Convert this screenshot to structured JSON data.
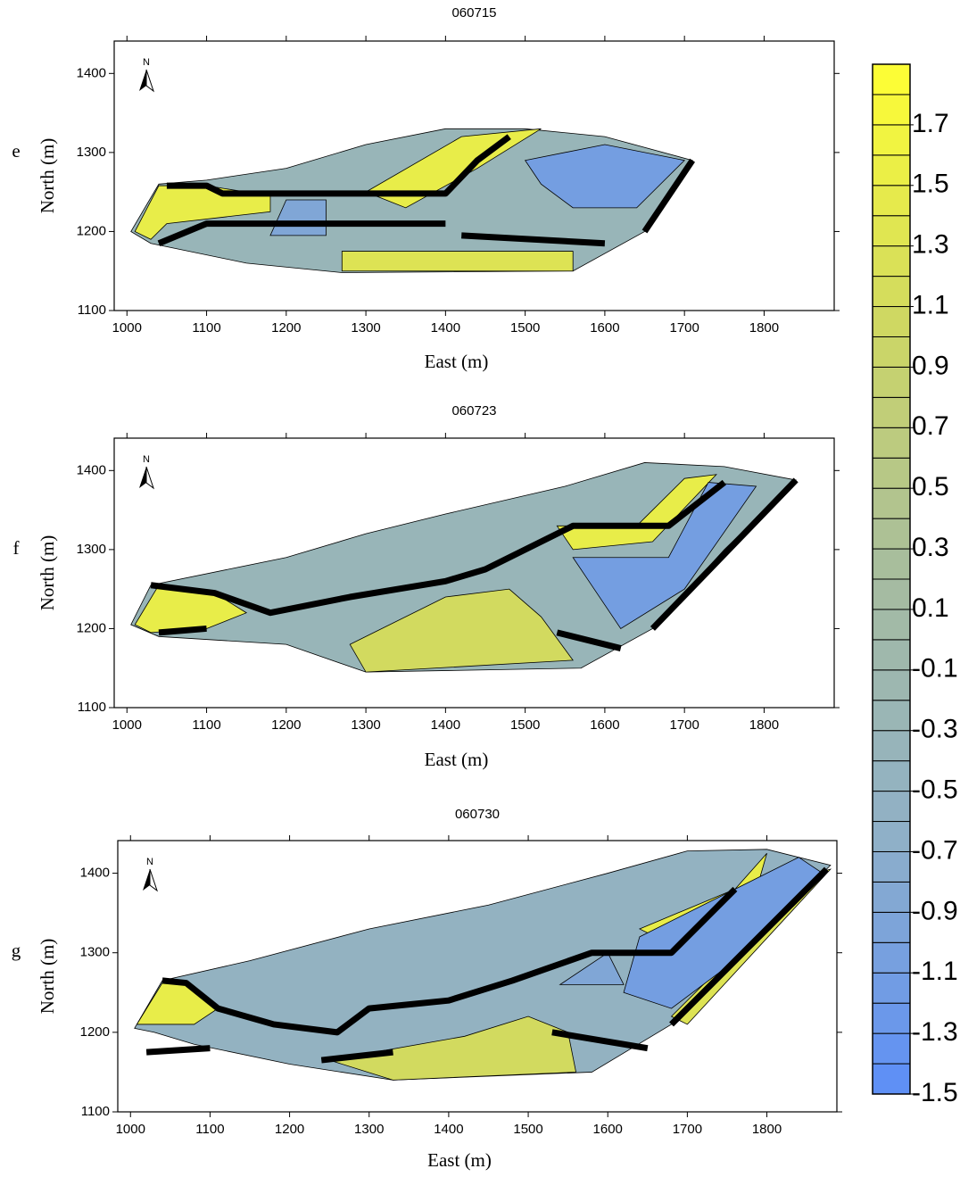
{
  "chart_data": [
    {
      "type": "contour",
      "title": "060715",
      "panel": "e",
      "x_label": "East (m)",
      "y_label": "North (m)",
      "xlim": [
        984,
        1888
      ],
      "ylim": [
        1100,
        1441
      ],
      "xticks": [
        1000,
        1100,
        1200,
        1300,
        1400,
        1500,
        1600,
        1700,
        1800
      ],
      "yticks": [
        1100,
        1200,
        1300,
        1400
      ],
      "zones": [
        {
          "level": -0.3,
          "points": [
            [
              1005,
              1200
            ],
            [
              1040,
              1260
            ],
            [
              1100,
              1265
            ],
            [
              1200,
              1280
            ],
            [
              1300,
              1310
            ],
            [
              1400,
              1330
            ],
            [
              1500,
              1330
            ],
            [
              1600,
              1320
            ],
            [
              1710,
              1290
            ],
            [
              1650,
              1200
            ],
            [
              1560,
              1150
            ],
            [
              1270,
              1148
            ],
            [
              1150,
              1160
            ],
            [
              1030,
              1185
            ]
          ]
        },
        {
          "level": 1.5,
          "points": [
            [
              1010,
              1200
            ],
            [
              1040,
              1258
            ],
            [
              1100,
              1258
            ],
            [
              1180,
              1245
            ],
            [
              1180,
              1225
            ],
            [
              1050,
              1210
            ],
            [
              1030,
              1190
            ]
          ]
        },
        {
          "level": 1.3,
          "points": [
            [
              1270,
              1175
            ],
            [
              1560,
              1175
            ],
            [
              1560,
              1150
            ],
            [
              1270,
              1150
            ]
          ]
        },
        {
          "level": 1.5,
          "points": [
            [
              1300,
              1250
            ],
            [
              1420,
              1320
            ],
            [
              1520,
              1330
            ],
            [
              1440,
              1280
            ],
            [
              1350,
              1230
            ]
          ]
        },
        {
          "level": -1.1,
          "points": [
            [
              1500,
              1290
            ],
            [
              1600,
              1310
            ],
            [
              1700,
              1290
            ],
            [
              1640,
              1230
            ],
            [
              1560,
              1230
            ],
            [
              1520,
              1260
            ]
          ]
        },
        {
          "level": -0.9,
          "points": [
            [
              1200,
              1240
            ],
            [
              1250,
              1240
            ],
            [
              1250,
              1195
            ],
            [
              1180,
              1195
            ]
          ]
        }
      ],
      "lines": [
        [
          [
            1050,
            1258
          ],
          [
            1100,
            1258
          ],
          [
            1120,
            1248
          ],
          [
            1400,
            1248
          ],
          [
            1440,
            1290
          ],
          [
            1480,
            1320
          ]
        ],
        [
          [
            1040,
            1185
          ],
          [
            1100,
            1210
          ],
          [
            1400,
            1210
          ]
        ],
        [
          [
            1600,
            1185
          ],
          [
            1420,
            1195
          ]
        ],
        [
          [
            1650,
            1200
          ],
          [
            1710,
            1290
          ]
        ]
      ]
    },
    {
      "type": "contour",
      "title": "060723",
      "panel": "f",
      "x_label": "East (m)",
      "y_label": "North (m)",
      "xlim": [
        984,
        1888
      ],
      "ylim": [
        1100,
        1441
      ],
      "xticks": [
        1000,
        1100,
        1200,
        1300,
        1400,
        1500,
        1600,
        1700,
        1800
      ],
      "yticks": [
        1100,
        1200,
        1300,
        1400
      ],
      "zones": [
        {
          "level": -0.3,
          "points": [
            [
              1005,
              1205
            ],
            [
              1030,
              1255
            ],
            [
              1200,
              1290
            ],
            [
              1300,
              1320
            ],
            [
              1400,
              1345
            ],
            [
              1550,
              1380
            ],
            [
              1650,
              1410
            ],
            [
              1750,
              1405
            ],
            [
              1840,
              1388
            ],
            [
              1750,
              1300
            ],
            [
              1660,
              1200
            ],
            [
              1570,
              1150
            ],
            [
              1300,
              1145
            ],
            [
              1200,
              1180
            ],
            [
              1040,
              1190
            ]
          ]
        },
        {
          "level": 1.5,
          "points": [
            [
              1010,
              1205
            ],
            [
              1040,
              1255
            ],
            [
              1110,
              1245
            ],
            [
              1150,
              1220
            ],
            [
              1100,
              1200
            ],
            [
              1030,
              1195
            ]
          ]
        },
        {
          "level": 1.1,
          "points": [
            [
              1280,
              1180
            ],
            [
              1400,
              1240
            ],
            [
              1480,
              1250
            ],
            [
              1520,
              1215
            ],
            [
              1560,
              1160
            ],
            [
              1300,
              1145
            ]
          ]
        },
        {
          "level": 1.5,
          "points": [
            [
              1540,
              1330
            ],
            [
              1640,
              1330
            ],
            [
              1700,
              1390
            ],
            [
              1740,
              1395
            ],
            [
              1660,
              1310
            ],
            [
              1560,
              1300
            ]
          ]
        },
        {
          "level": -1.1,
          "points": [
            [
              1560,
              1290
            ],
            [
              1680,
              1290
            ],
            [
              1730,
              1385
            ],
            [
              1790,
              1380
            ],
            [
              1700,
              1250
            ],
            [
              1620,
              1200
            ],
            [
              1580,
              1260
            ]
          ]
        }
      ],
      "lines": [
        [
          [
            1030,
            1255
          ],
          [
            1110,
            1245
          ],
          [
            1180,
            1220
          ],
          [
            1280,
            1240
          ],
          [
            1400,
            1260
          ],
          [
            1450,
            1275
          ],
          [
            1560,
            1330
          ],
          [
            1680,
            1330
          ],
          [
            1750,
            1385
          ]
        ],
        [
          [
            1040,
            1195
          ],
          [
            1100,
            1200
          ]
        ],
        [
          [
            1540,
            1195
          ],
          [
            1620,
            1175
          ]
        ],
        [
          [
            1660,
            1200
          ],
          [
            1840,
            1388
          ]
        ]
      ]
    },
    {
      "type": "contour",
      "title": "060730",
      "panel": "g",
      "x_label": "East (m)",
      "y_label": "North (m)",
      "xlim": [
        984,
        1888
      ],
      "ylim": [
        1100,
        1441
      ],
      "xticks": [
        1000,
        1100,
        1200,
        1300,
        1400,
        1500,
        1600,
        1700,
        1800
      ],
      "yticks": [
        1100,
        1200,
        1300,
        1400
      ],
      "zones": [
        {
          "level": -0.5,
          "points": [
            [
              1005,
              1205
            ],
            [
              1040,
              1265
            ],
            [
              1150,
              1290
            ],
            [
              1300,
              1330
            ],
            [
              1450,
              1360
            ],
            [
              1600,
              1400
            ],
            [
              1700,
              1428
            ],
            [
              1800,
              1430
            ],
            [
              1880,
              1410
            ],
            [
              1780,
              1310
            ],
            [
              1680,
              1210
            ],
            [
              1580,
              1150
            ],
            [
              1330,
              1140
            ],
            [
              1200,
              1160
            ],
            [
              1080,
              1185
            ],
            [
              1030,
              1200
            ]
          ]
        },
        {
          "level": 1.5,
          "points": [
            [
              1008,
              1210
            ],
            [
              1040,
              1262
            ],
            [
              1070,
              1262
            ],
            [
              1110,
              1230
            ],
            [
              1080,
              1210
            ]
          ]
        },
        {
          "level": 1.1,
          "points": [
            [
              1250,
              1165
            ],
            [
              1420,
              1195
            ],
            [
              1500,
              1220
            ],
            [
              1550,
              1200
            ],
            [
              1560,
              1150
            ],
            [
              1330,
              1140
            ]
          ]
        },
        {
          "level": 1.5,
          "points": [
            [
              1640,
              1330
            ],
            [
              1760,
              1380
            ],
            [
              1800,
              1425
            ],
            [
              1790,
              1390
            ],
            [
              1720,
              1350
            ],
            [
              1660,
              1320
            ]
          ]
        },
        {
          "level": 1.3,
          "points": [
            [
              1680,
              1220
            ],
            [
              1860,
              1400
            ],
            [
              1880,
              1405
            ],
            [
              1700,
              1210
            ]
          ]
        },
        {
          "level": -1.1,
          "points": [
            [
              1640,
              1320
            ],
            [
              1780,
              1390
            ],
            [
              1840,
              1420
            ],
            [
              1870,
              1400
            ],
            [
              1760,
              1290
            ],
            [
              1680,
              1230
            ],
            [
              1620,
              1250
            ]
          ]
        },
        {
          "level": -0.9,
          "points": [
            [
              1540,
              1260
            ],
            [
              1600,
              1300
            ],
            [
              1620,
              1260
            ]
          ]
        }
      ],
      "lines": [
        [
          [
            1040,
            1265
          ],
          [
            1070,
            1262
          ],
          [
            1110,
            1230
          ],
          [
            1180,
            1210
          ],
          [
            1260,
            1200
          ],
          [
            1300,
            1230
          ],
          [
            1400,
            1240
          ],
          [
            1480,
            1265
          ],
          [
            1580,
            1300
          ],
          [
            1680,
            1300
          ],
          [
            1760,
            1380
          ]
        ],
        [
          [
            1020,
            1175
          ],
          [
            1100,
            1180
          ]
        ],
        [
          [
            1240,
            1165
          ],
          [
            1330,
            1175
          ]
        ],
        [
          [
            1530,
            1200
          ],
          [
            1650,
            1180
          ]
        ],
        [
          [
            1680,
            1210
          ],
          [
            1875,
            1405
          ]
        ]
      ]
    },
    {
      "type": "colorbar",
      "lim": [
        -1.5,
        1.9
      ],
      "ticks": [
        -1.5,
        -1.3,
        -1.1,
        -0.9,
        -0.7,
        -0.5,
        -0.3,
        -0.1,
        0.1,
        0.3,
        0.5,
        0.7,
        0.9,
        1.1,
        1.3,
        1.5,
        1.7
      ],
      "colors": [
        "#5c8ef8",
        "#8fb0c8",
        "#a6bca0",
        "#cfd862",
        "#ffff33"
      ]
    }
  ]
}
